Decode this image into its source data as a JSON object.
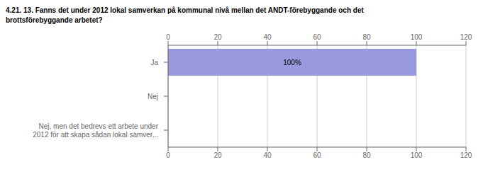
{
  "chart_data": {
    "type": "bar",
    "orientation": "horizontal",
    "title": "4.21. 13. Fanns det under 2012 lokal samverkan på kommunal nivå mellan det ANDT-förebyggande och det\nbrottsförebyggande arbetet?",
    "categories": [
      "Ja",
      "Nej",
      "Nej, men det bedrevs ett arbete under\n2012 för att skapa sådan lokal samver..."
    ],
    "values": [
      100,
      0,
      0
    ],
    "value_labels": [
      "100%",
      null,
      null
    ],
    "data_labels": true,
    "color": "#9999dd",
    "xlim": [
      0,
      120
    ],
    "xticks": [
      0,
      20,
      40,
      60,
      80,
      100,
      120
    ],
    "grid": true
  }
}
